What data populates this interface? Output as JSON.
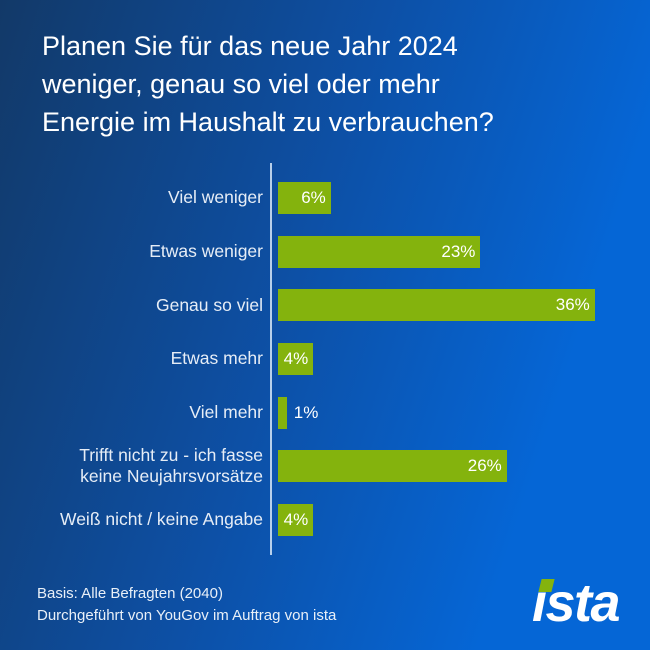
{
  "background": {
    "gradient_left": "#123968",
    "gradient_mid": "#0d50a6",
    "gradient_right": "#0566d6"
  },
  "title_lines": [
    "Planen Sie für das neue Jahr 2024",
    "weniger, genau so viel oder mehr",
    "Energie im Haushalt zu verbrauchen?"
  ],
  "chart_data": {
    "type": "bar",
    "orientation": "horizontal",
    "title": "Planen Sie für das neue Jahr 2024 weniger, genau so viel oder mehr Energie im Haushalt zu verbrauchen?",
    "categories": [
      "Viel weniger",
      "Etwas weniger",
      "Genau so viel",
      "Etwas mehr",
      "Viel mehr",
      "Trifft nicht zu - ich fasse keine Neujahrsvorsätze",
      "Weiß nicht / keine Angabe"
    ],
    "values": [
      6,
      23,
      36,
      4,
      1,
      26,
      4
    ],
    "value_labels": [
      "6%",
      "23%",
      "36%",
      "4%",
      "1%",
      "26%",
      "4%"
    ],
    "unit": "%",
    "xlim": [
      0,
      40
    ],
    "grid": false,
    "legend": false,
    "bar_color": "#84b30d",
    "value_label_color": "#ffffff",
    "value_label_position": "inside-end",
    "axis_line_color": "#d6e6f7"
  },
  "footer": {
    "basis": "Basis: Alle Befragten (2040)",
    "source": "Durchgeführt von YouGov im Auftrag von ista",
    "logo_text": "ista",
    "logo_accent_color": "#84b30d"
  }
}
